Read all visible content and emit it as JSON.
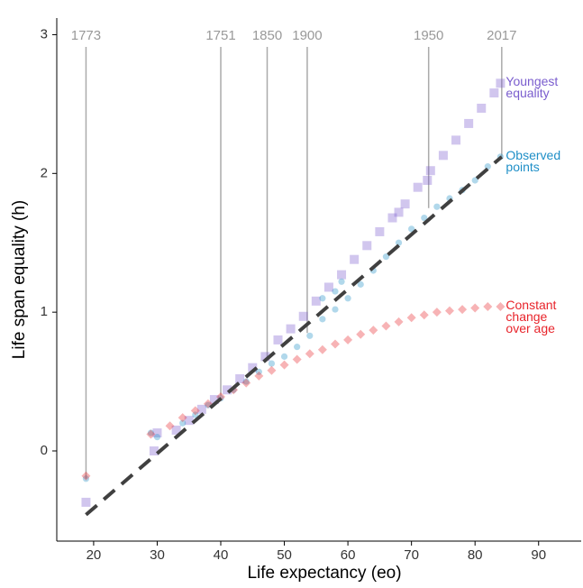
{
  "chart_data": {
    "type": "scatter",
    "x_label": "Life expectancy (eo)",
    "y_label": "Life span equality (h)",
    "xlim": [
      14.2,
      96.7
    ],
    "ylim": [
      -0.65,
      3.12
    ],
    "xticks": [
      20,
      30,
      40,
      50,
      60,
      70,
      80,
      90
    ],
    "yticks": [
      0,
      1,
      2,
      3
    ],
    "grid": false,
    "series": [
      {
        "name": "Youngest equality",
        "color": "#7a5dce",
        "marker": "square",
        "x": [
          18.8,
          29.5,
          30,
          33,
          35,
          37,
          39,
          41,
          43,
          45,
          47,
          49,
          51,
          53,
          55,
          57,
          59,
          61,
          63,
          65,
          67,
          68,
          69,
          71,
          72.5,
          73,
          75,
          77,
          79,
          81,
          83,
          84
        ],
        "y": [
          -0.37,
          0.0,
          0.13,
          0.15,
          0.22,
          0.3,
          0.37,
          0.44,
          0.52,
          0.6,
          0.68,
          0.8,
          0.88,
          0.97,
          1.08,
          1.18,
          1.27,
          1.38,
          1.48,
          1.58,
          1.68,
          1.72,
          1.78,
          1.9,
          1.95,
          2.02,
          2.13,
          2.24,
          2.36,
          2.47,
          2.58,
          2.65
        ]
      },
      {
        "name": "Observed points",
        "color": "#1f8fc7",
        "marker": "circle",
        "x": [
          18.8,
          29,
          30,
          34,
          36,
          38,
          40,
          42,
          44,
          46,
          48,
          50,
          52,
          54,
          56,
          56,
          58,
          58,
          59,
          60,
          62,
          64,
          66,
          68,
          70,
          72,
          74,
          76,
          78,
          80,
          82,
          84
        ],
        "y": [
          -0.2,
          0.13,
          0.1,
          0.2,
          0.26,
          0.33,
          0.38,
          0.44,
          0.5,
          0.57,
          0.63,
          0.68,
          0.75,
          0.83,
          0.95,
          1.1,
          1.02,
          1.15,
          1.22,
          1.1,
          1.2,
          1.3,
          1.4,
          1.5,
          1.6,
          1.68,
          1.76,
          1.82,
          1.88,
          1.95,
          2.05,
          2.12
        ]
      },
      {
        "name": "Constant change over age",
        "color": "#e8242b",
        "marker": "diamond",
        "x": [
          18.8,
          29,
          32,
          34,
          36,
          38,
          40,
          42,
          44,
          46,
          48,
          50,
          52,
          54,
          56,
          58,
          60,
          62,
          64,
          66,
          68,
          70,
          72,
          74,
          76,
          78,
          80,
          82,
          84
        ],
        "y": [
          -0.18,
          0.12,
          0.18,
          0.24,
          0.29,
          0.34,
          0.39,
          0.44,
          0.49,
          0.54,
          0.58,
          0.62,
          0.66,
          0.7,
          0.73,
          0.77,
          0.8,
          0.84,
          0.87,
          0.9,
          0.93,
          0.96,
          0.98,
          1.0,
          1.01,
          1.02,
          1.03,
          1.04,
          1.04
        ]
      }
    ],
    "reference_line": {
      "color": "#404040",
      "x": [
        18.8,
        84.2
      ],
      "y": [
        -0.46,
        2.12
      ]
    },
    "annotations": [
      {
        "label": "1773",
        "x": 18.8,
        "y": -0.2
      },
      {
        "label": "1751",
        "x": 40,
        "y": 0.4
      },
      {
        "label": "1850",
        "x": 47.3,
        "y": 0.65
      },
      {
        "label": "1900",
        "x": 53.6,
        "y": 0.85
      },
      {
        "label": "1950",
        "x": 72.7,
        "y": 1.75
      },
      {
        "label": "2017",
        "x": 84.2,
        "y": 2.12
      }
    ]
  }
}
